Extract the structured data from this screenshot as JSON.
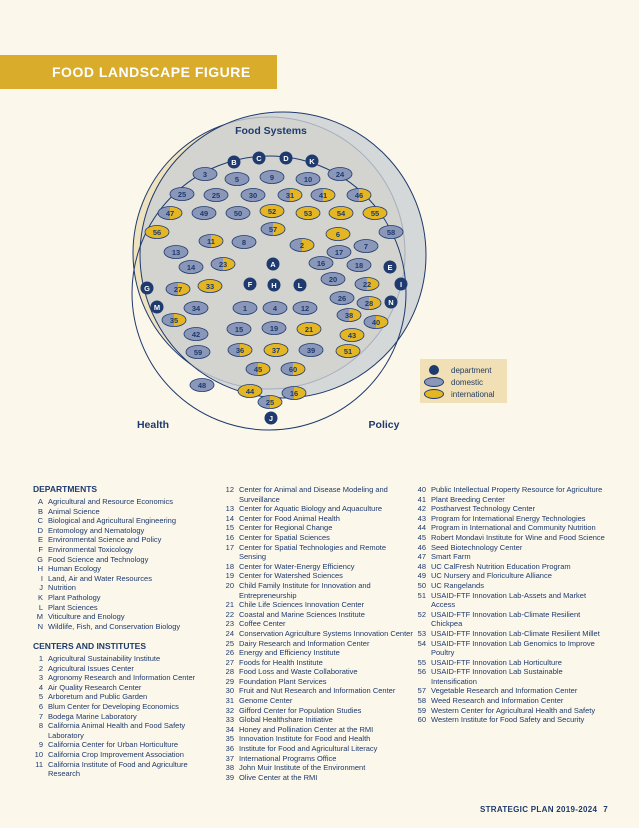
{
  "figure": {
    "banner_title": "FOOD LANDSCAPE FIGURE",
    "circle_labels": {
      "food_systems": "Food Systems",
      "health": "Health",
      "policy": "Policy"
    },
    "legend": {
      "department": "department",
      "domestic": "domestic",
      "international": "international"
    },
    "colors": {
      "banner": "#d9ad2b",
      "navy": "#1e3a6e",
      "domestic": "#8a97b9",
      "international": "#e5b623",
      "page": "#fbf7ea"
    },
    "markers": [
      {
        "label": "B",
        "kind": "department"
      },
      {
        "label": "C",
        "kind": "department"
      },
      {
        "label": "D",
        "kind": "department"
      },
      {
        "label": "K",
        "kind": "department"
      },
      {
        "label": "3",
        "kind": "domestic"
      },
      {
        "label": "5",
        "kind": "domestic"
      },
      {
        "label": "9",
        "kind": "domestic"
      },
      {
        "label": "10",
        "kind": "domestic"
      },
      {
        "label": "24",
        "kind": "domestic"
      },
      {
        "label": "25",
        "kind": "domestic"
      },
      {
        "label": "25",
        "kind": "domestic"
      },
      {
        "label": "30",
        "kind": "domestic"
      },
      {
        "label": "31",
        "kind": "mixed"
      },
      {
        "label": "41",
        "kind": "mixed"
      },
      {
        "label": "46",
        "kind": "mixed"
      },
      {
        "label": "47",
        "kind": "mixed"
      },
      {
        "label": "49",
        "kind": "domestic"
      },
      {
        "label": "50",
        "kind": "domestic"
      },
      {
        "label": "52",
        "kind": "international"
      },
      {
        "label": "53",
        "kind": "international"
      },
      {
        "label": "54",
        "kind": "international"
      },
      {
        "label": "55",
        "kind": "international"
      },
      {
        "label": "56",
        "kind": "international"
      },
      {
        "label": "57",
        "kind": "mixed"
      },
      {
        "label": "58",
        "kind": "domestic"
      },
      {
        "label": "11",
        "kind": "mixed"
      },
      {
        "label": "8",
        "kind": "domestic"
      },
      {
        "label": "2",
        "kind": "mixed"
      },
      {
        "label": "6",
        "kind": "international"
      },
      {
        "label": "13",
        "kind": "domestic"
      },
      {
        "label": "17",
        "kind": "domestic"
      },
      {
        "label": "7",
        "kind": "domestic"
      },
      {
        "label": "14",
        "kind": "domestic"
      },
      {
        "label": "23",
        "kind": "mixed"
      },
      {
        "label": "A",
        "kind": "department"
      },
      {
        "label": "16",
        "kind": "domestic"
      },
      {
        "label": "18",
        "kind": "domestic"
      },
      {
        "label": "E",
        "kind": "department"
      },
      {
        "label": "20",
        "kind": "domestic"
      },
      {
        "label": "G",
        "kind": "department"
      },
      {
        "label": "27",
        "kind": "mixed"
      },
      {
        "label": "33",
        "kind": "international"
      },
      {
        "label": "F",
        "kind": "department"
      },
      {
        "label": "H",
        "kind": "department"
      },
      {
        "label": "L",
        "kind": "department"
      },
      {
        "label": "22",
        "kind": "mixed"
      },
      {
        "label": "I",
        "kind": "department"
      },
      {
        "label": "M",
        "kind": "department"
      },
      {
        "label": "34",
        "kind": "domestic"
      },
      {
        "label": "1",
        "kind": "domestic"
      },
      {
        "label": "4",
        "kind": "domestic"
      },
      {
        "label": "12",
        "kind": "domestic"
      },
      {
        "label": "26",
        "kind": "domestic"
      },
      {
        "label": "28",
        "kind": "mixed"
      },
      {
        "label": "N",
        "kind": "department"
      },
      {
        "label": "35",
        "kind": "mixed"
      },
      {
        "label": "38",
        "kind": "mixed"
      },
      {
        "label": "40",
        "kind": "mixed"
      },
      {
        "label": "42",
        "kind": "domestic"
      },
      {
        "label": "15",
        "kind": "domestic"
      },
      {
        "label": "19",
        "kind": "domestic"
      },
      {
        "label": "21",
        "kind": "international"
      },
      {
        "label": "43",
        "kind": "international"
      },
      {
        "label": "59",
        "kind": "domestic"
      },
      {
        "label": "36",
        "kind": "mixed"
      },
      {
        "label": "37",
        "kind": "international"
      },
      {
        "label": "39",
        "kind": "domestic"
      },
      {
        "label": "51",
        "kind": "international"
      },
      {
        "label": "45",
        "kind": "mixed"
      },
      {
        "label": "60",
        "kind": "mixed"
      },
      {
        "label": "48",
        "kind": "domestic"
      },
      {
        "label": "44",
        "kind": "international"
      },
      {
        "label": "16",
        "kind": "mixed"
      },
      {
        "label": "25",
        "kind": "mixed"
      },
      {
        "label": "J",
        "kind": "department"
      }
    ]
  },
  "departments": {
    "heading": "DEPARTMENTS",
    "items": [
      {
        "key": "A",
        "name": "Agricultural and Resource Economics"
      },
      {
        "key": "B",
        "name": "Animal Science"
      },
      {
        "key": "C",
        "name": "Biological and Agricultural Engineering"
      },
      {
        "key": "D",
        "name": "Entomology and Nematology"
      },
      {
        "key": "E",
        "name": "Environmental Science and Policy"
      },
      {
        "key": "F",
        "name": "Environmental Toxicology"
      },
      {
        "key": "G",
        "name": "Food Science and Technology"
      },
      {
        "key": "H",
        "name": "Human Ecology"
      },
      {
        "key": "I",
        "name": "Land, Air and Water Resources"
      },
      {
        "key": "J",
        "name": "Nutrition"
      },
      {
        "key": "K",
        "name": "Plant Pathology"
      },
      {
        "key": "L",
        "name": "Plant Sciences"
      },
      {
        "key": "M",
        "name": "Viticulture and Enology"
      },
      {
        "key": "N",
        "name": "Wildlife, Fish, and Conservation Biology"
      }
    ]
  },
  "centers": {
    "heading": "CENTERS AND INSTITUTES",
    "col1": [
      {
        "key": "1",
        "name": "Agricultural Sustainability Institute"
      },
      {
        "key": "2",
        "name": "Agricultural Issues Center"
      },
      {
        "key": "3",
        "name": "Agronomy Research and Information Center"
      },
      {
        "key": "4",
        "name": "Air Quality Research Center"
      },
      {
        "key": "5",
        "name": "Arboretum and Public Garden"
      },
      {
        "key": "6",
        "name": "Blum Center for Developing Economics"
      },
      {
        "key": "7",
        "name": "Bodega Marine Laboratory"
      },
      {
        "key": "8",
        "name": "California Animal Health and Food Safety Laboratory"
      },
      {
        "key": "9",
        "name": "California Center for Urban Horticulture"
      },
      {
        "key": "10",
        "name": "California Crop Improvement Association"
      },
      {
        "key": "11",
        "name": "California Institute of Food and Agriculture Research"
      }
    ],
    "col2": [
      {
        "key": "12",
        "name": "Center for Animal and Disease Modeling and Surveillance"
      },
      {
        "key": "13",
        "name": "Center for Aquatic Biology and Aquaculture"
      },
      {
        "key": "14",
        "name": "Center for Food Animal Health"
      },
      {
        "key": "15",
        "name": "Center for Regional Change"
      },
      {
        "key": "16",
        "name": "Center for Spatial Sciences"
      },
      {
        "key": "17",
        "name": "Center for Spatial Technologies and Remote Sensing"
      },
      {
        "key": "18",
        "name": "Center for Water-Energy Efficiency"
      },
      {
        "key": "19",
        "name": "Center for Watershed Sciences"
      },
      {
        "key": "20",
        "name": "Child Family Institute for Innovation and Entrepreneurship"
      },
      {
        "key": "21",
        "name": "Chile Life Sciences Innovation Center"
      },
      {
        "key": "22",
        "name": "Coastal and Marine Sciences Institute"
      },
      {
        "key": "23",
        "name": "Coffee Center"
      },
      {
        "key": "24",
        "name": "Conservation Agriculture Systems Innovation Center"
      },
      {
        "key": "25",
        "name": "Dairy Research and Information Center"
      },
      {
        "key": "26",
        "name": "Energy and Efficiency Institute"
      },
      {
        "key": "27",
        "name": "Foods for Health Institute"
      },
      {
        "key": "28",
        "name": "Food Loss and Waste Collaborative"
      },
      {
        "key": "29",
        "name": "Foundation Plant Services"
      },
      {
        "key": "30",
        "name": "Fruit and Nut Research and Information Center"
      },
      {
        "key": "31",
        "name": "Genome Center"
      },
      {
        "key": "32",
        "name": "Gifford Center for Population Studies"
      },
      {
        "key": "33",
        "name": "Global Healthshare Initiative"
      },
      {
        "key": "34",
        "name": "Honey and Pollination Center at the RMI"
      },
      {
        "key": "35",
        "name": "Innovation Institute for Food and Health"
      },
      {
        "key": "36",
        "name": "Institute for Food and Agricultural Literacy"
      },
      {
        "key": "37",
        "name": "International Programs Office"
      },
      {
        "key": "38",
        "name": "John Muir Institute of the Environment"
      },
      {
        "key": "39",
        "name": "Olive Center at the RMI"
      }
    ],
    "col3": [
      {
        "key": "40",
        "name": "Public Intellectual Property Resource for Agriculture"
      },
      {
        "key": "41",
        "name": "Plant Breeding Center"
      },
      {
        "key": "42",
        "name": "Postharvest Technology Center"
      },
      {
        "key": "43",
        "name": "Program for International Energy Technologies"
      },
      {
        "key": "44",
        "name": "Program in International and Community Nutrition"
      },
      {
        "key": "45",
        "name": "Robert Mondavi Institute for Wine and Food Science"
      },
      {
        "key": "46",
        "name": "Seed Biotechnology Center"
      },
      {
        "key": "47",
        "name": "Smart Farm"
      },
      {
        "key": "48",
        "name": "UC CalFresh Nutrition Education Program"
      },
      {
        "key": "49",
        "name": "UC Nursery and Floriculture Alliance"
      },
      {
        "key": "50",
        "name": "UC Rangelands"
      },
      {
        "key": "51",
        "name": "USAID-FTF Innovation Lab-Assets and Market Access"
      },
      {
        "key": "52",
        "name": "USAID-FTF Innovation Lab-Climate Resilient Chickpea"
      },
      {
        "key": "53",
        "name": "USAID-FTF Innovation Lab-Climate Resilient Millet"
      },
      {
        "key": "54",
        "name": "USAID-FTF Innovation Lab Genomics to Improve Poultry"
      },
      {
        "key": "55",
        "name": "USAID-FTF Innovation Lab Horticulture"
      },
      {
        "key": "56",
        "name": "USAID-FTF Innovation Lab Sustainable Intensification"
      },
      {
        "key": "57",
        "name": "Vegetable Research and Information Center"
      },
      {
        "key": "58",
        "name": "Weed Research and Information Center"
      },
      {
        "key": "59",
        "name": "Western Center for Agricultural Health and Safety"
      },
      {
        "key": "60",
        "name": "Western Institute for Food Safety and Security"
      }
    ]
  },
  "footer": {
    "text": "STRATEGIC PLAN 2019-2024",
    "page": "7"
  }
}
